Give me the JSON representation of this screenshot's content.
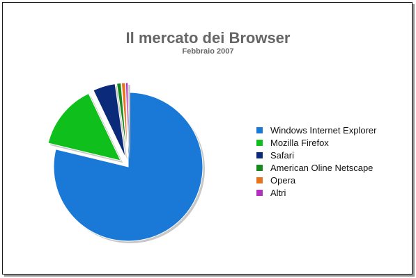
{
  "chart_data": {
    "type": "pie",
    "title": "Il mercato dei Browser",
    "subtitle": "Febbraio 2007",
    "legend_position": "right",
    "slices": [
      {
        "label": "Windows Internet Explorer",
        "value": 78.0,
        "color": "#1a78d6"
      },
      {
        "label": "Mozilla Firefox",
        "value": 14.0,
        "color": "#0fbf1c"
      },
      {
        "label": "Safari",
        "value": 4.8,
        "color": "#0c2a7a"
      },
      {
        "label": "American Oline Netscape",
        "value": 0.9,
        "color": "#178a1e"
      },
      {
        "label": "Opera",
        "value": 0.8,
        "color": "#e8731e"
      },
      {
        "label": "Altri",
        "value": 0.5,
        "color": "#b22fc0"
      }
    ]
  }
}
